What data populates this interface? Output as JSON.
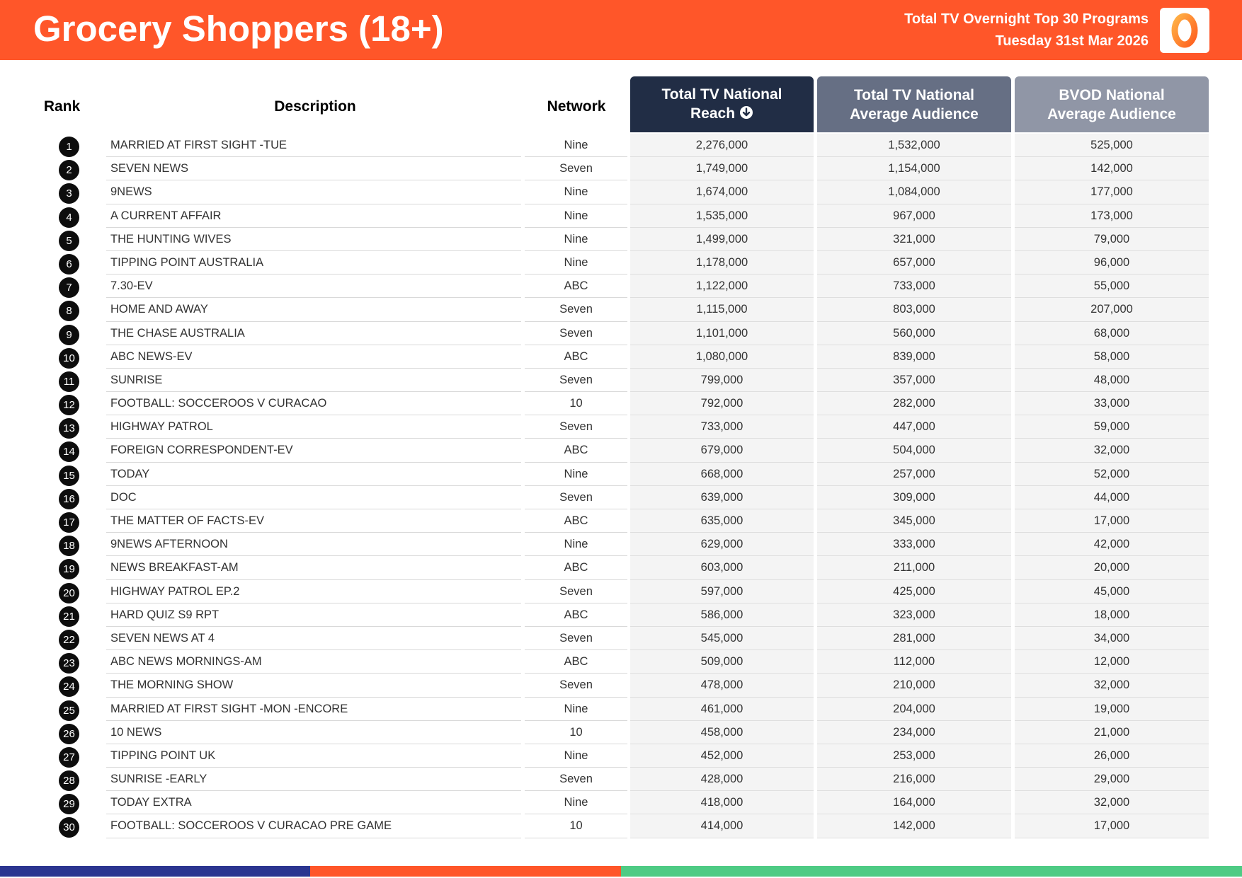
{
  "header": {
    "title": "Grocery Shoppers (18+)",
    "subtitle_line1": "Total TV Overnight Top 30 Programs",
    "subtitle_line2": "Tuesday 31st Mar 2026",
    "logo_text": "0",
    "logo_icon": "oztam-logo-icon"
  },
  "colors": {
    "header_orange": "#ff5629",
    "reach_header": "#212d45",
    "avg_header": "#666f84",
    "bvod_header": "#9096a6",
    "footer_blue": "#2b3590",
    "footer_orange": "#ff5629",
    "footer_green": "#4ecb84"
  },
  "columns": {
    "rank": "Rank",
    "description": "Description",
    "network": "Network",
    "reach_line1": "Total TV National",
    "reach_line2": "Reach",
    "reach_sort_icon": "sort-down-arrow-icon",
    "avg_line1": "Total TV National",
    "avg_line2": "Average Audience",
    "bvod_line1": "BVOD National",
    "bvod_line2": "Average Audience"
  },
  "rows": [
    {
      "rank": "1",
      "description": "MARRIED AT FIRST SIGHT -TUE",
      "network": "Nine",
      "reach": "2,276,000",
      "avg": "1,532,000",
      "bvod": "525,000"
    },
    {
      "rank": "2",
      "description": "SEVEN NEWS",
      "network": "Seven",
      "reach": "1,749,000",
      "avg": "1,154,000",
      "bvod": "142,000"
    },
    {
      "rank": "3",
      "description": "9NEWS",
      "network": "Nine",
      "reach": "1,674,000",
      "avg": "1,084,000",
      "bvod": "177,000"
    },
    {
      "rank": "4",
      "description": "A CURRENT AFFAIR",
      "network": "Nine",
      "reach": "1,535,000",
      "avg": "967,000",
      "bvod": "173,000"
    },
    {
      "rank": "5",
      "description": "THE HUNTING WIVES",
      "network": "Nine",
      "reach": "1,499,000",
      "avg": "321,000",
      "bvod": "79,000"
    },
    {
      "rank": "6",
      "description": "TIPPING POINT AUSTRALIA",
      "network": "Nine",
      "reach": "1,178,000",
      "avg": "657,000",
      "bvod": "96,000"
    },
    {
      "rank": "7",
      "description": "7.30-EV",
      "network": "ABC",
      "reach": "1,122,000",
      "avg": "733,000",
      "bvod": "55,000"
    },
    {
      "rank": "8",
      "description": "HOME AND AWAY",
      "network": "Seven",
      "reach": "1,115,000",
      "avg": "803,000",
      "bvod": "207,000"
    },
    {
      "rank": "9",
      "description": "THE CHASE AUSTRALIA",
      "network": "Seven",
      "reach": "1,101,000",
      "avg": "560,000",
      "bvod": "68,000"
    },
    {
      "rank": "10",
      "description": "ABC NEWS-EV",
      "network": "ABC",
      "reach": "1,080,000",
      "avg": "839,000",
      "bvod": "58,000"
    },
    {
      "rank": "11",
      "description": "SUNRISE",
      "network": "Seven",
      "reach": "799,000",
      "avg": "357,000",
      "bvod": "48,000"
    },
    {
      "rank": "12",
      "description": "FOOTBALL: SOCCEROOS V CURACAO",
      "network": "10",
      "reach": "792,000",
      "avg": "282,000",
      "bvod": "33,000"
    },
    {
      "rank": "13",
      "description": "HIGHWAY PATROL",
      "network": "Seven",
      "reach": "733,000",
      "avg": "447,000",
      "bvod": "59,000"
    },
    {
      "rank": "14",
      "description": "FOREIGN CORRESPONDENT-EV",
      "network": "ABC",
      "reach": "679,000",
      "avg": "504,000",
      "bvod": "32,000"
    },
    {
      "rank": "15",
      "description": "TODAY",
      "network": "Nine",
      "reach": "668,000",
      "avg": "257,000",
      "bvod": "52,000"
    },
    {
      "rank": "16",
      "description": "DOC",
      "network": "Seven",
      "reach": "639,000",
      "avg": "309,000",
      "bvod": "44,000"
    },
    {
      "rank": "17",
      "description": "THE MATTER OF FACTS-EV",
      "network": "ABC",
      "reach": "635,000",
      "avg": "345,000",
      "bvod": "17,000"
    },
    {
      "rank": "18",
      "description": "9NEWS AFTERNOON",
      "network": "Nine",
      "reach": "629,000",
      "avg": "333,000",
      "bvod": "42,000"
    },
    {
      "rank": "19",
      "description": "NEWS BREAKFAST-AM",
      "network": "ABC",
      "reach": "603,000",
      "avg": "211,000",
      "bvod": "20,000"
    },
    {
      "rank": "20",
      "description": "HIGHWAY PATROL EP.2",
      "network": "Seven",
      "reach": "597,000",
      "avg": "425,000",
      "bvod": "45,000"
    },
    {
      "rank": "21",
      "description": "HARD QUIZ S9 RPT",
      "network": "ABC",
      "reach": "586,000",
      "avg": "323,000",
      "bvod": "18,000"
    },
    {
      "rank": "22",
      "description": "SEVEN NEWS AT 4",
      "network": "Seven",
      "reach": "545,000",
      "avg": "281,000",
      "bvod": "34,000"
    },
    {
      "rank": "23",
      "description": "ABC NEWS MORNINGS-AM",
      "network": "ABC",
      "reach": "509,000",
      "avg": "112,000",
      "bvod": "12,000"
    },
    {
      "rank": "24",
      "description": "THE MORNING SHOW",
      "network": "Seven",
      "reach": "478,000",
      "avg": "210,000",
      "bvod": "32,000"
    },
    {
      "rank": "25",
      "description": "MARRIED AT FIRST SIGHT -MON -ENCORE",
      "network": "Nine",
      "reach": "461,000",
      "avg": "204,000",
      "bvod": "19,000"
    },
    {
      "rank": "26",
      "description": "10 NEWS",
      "network": "10",
      "reach": "458,000",
      "avg": "234,000",
      "bvod": "21,000"
    },
    {
      "rank": "27",
      "description": "TIPPING POINT UK",
      "network": "Nine",
      "reach": "452,000",
      "avg": "253,000",
      "bvod": "26,000"
    },
    {
      "rank": "28",
      "description": "SUNRISE -EARLY",
      "network": "Seven",
      "reach": "428,000",
      "avg": "216,000",
      "bvod": "29,000"
    },
    {
      "rank": "29",
      "description": "TODAY EXTRA",
      "network": "Nine",
      "reach": "418,000",
      "avg": "164,000",
      "bvod": "32,000"
    },
    {
      "rank": "30",
      "description": "FOOTBALL: SOCCEROOS V CURACAO PRE GAME",
      "network": "10",
      "reach": "414,000",
      "avg": "142,000",
      "bvod": "17,000"
    }
  ]
}
